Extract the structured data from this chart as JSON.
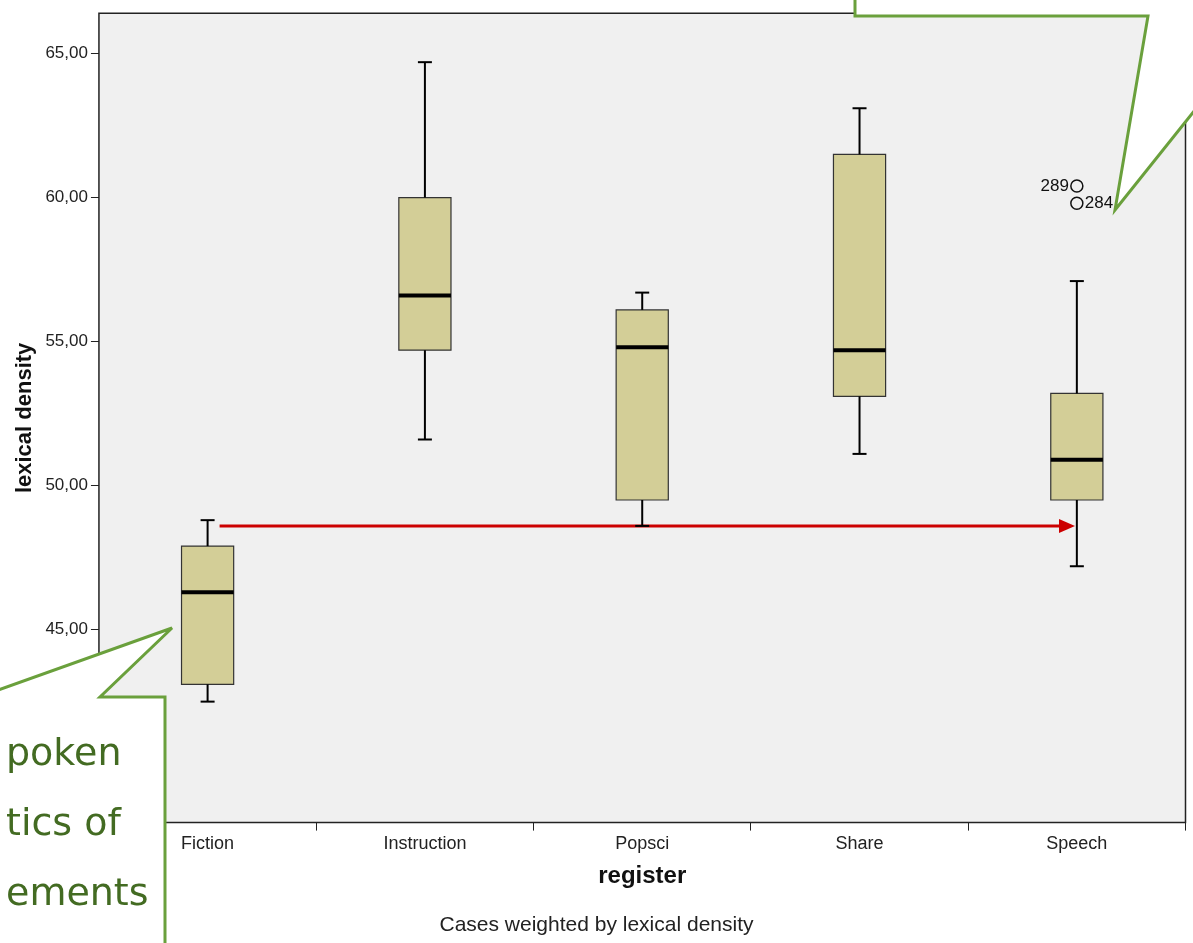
{
  "chart_data": {
    "type": "box",
    "xlabel": "register",
    "ylabel": "lexical density",
    "categories": [
      "Fiction",
      "Instruction",
      "Popsci",
      "Share",
      "Speech"
    ],
    "color": "#d3ce97",
    "boxes": [
      {
        "low": 42.5,
        "q1": 43.1,
        "median": 46.3,
        "q3": 47.9,
        "high": 48.8
      },
      {
        "low": 51.6,
        "q1": 54.7,
        "median": 56.6,
        "q3": 60.0,
        "high": 64.7
      },
      {
        "low": 48.6,
        "q1": 49.5,
        "median": 54.8,
        "q3": 56.1,
        "high": 56.7
      },
      {
        "low": 51.1,
        "q1": 53.1,
        "median": 54.7,
        "q3": 61.5,
        "high": 63.1
      },
      {
        "low": 47.2,
        "q1": 49.5,
        "median": 50.9,
        "q3": 53.2,
        "high": 57.1,
        "outliers": [
          60.4,
          59.8
        ]
      }
    ],
    "ylim": [
      38.3,
      66.4
    ],
    "yticks": [
      {
        "value": 45,
        "label": "45,00"
      },
      {
        "value": 50,
        "label": "50,00"
      },
      {
        "value": 55,
        "label": "55,00"
      },
      {
        "value": 60,
        "label": "60,00"
      },
      {
        "value": 65,
        "label": "65,00"
      }
    ],
    "grid": false,
    "ref_lines": [
      {
        "axis": "y",
        "value": 48.6,
        "color": "#cc0000"
      }
    ],
    "annotations": [
      "poken\ntics of\nements",
      "289",
      "284",
      "Cases weighted by lexical density"
    ]
  }
}
